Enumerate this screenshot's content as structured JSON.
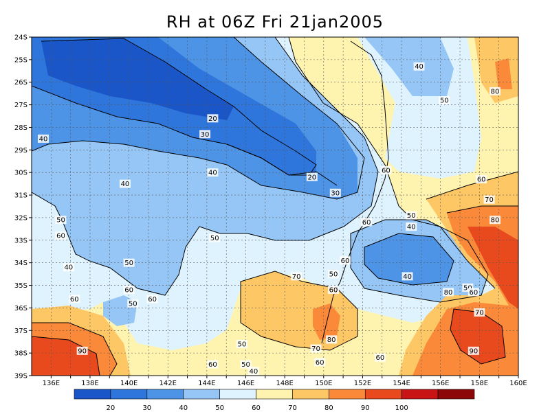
{
  "title": "RH at 06Z Fri 21jan2005",
  "lat_labels": [
    "24S",
    "25S",
    "26S",
    "27S",
    "28S",
    "29S",
    "30S",
    "31S",
    "32S",
    "33S",
    "34S",
    "35S",
    "36S",
    "37S",
    "38S",
    "39S"
  ],
  "lon_labels": [
    "136E",
    "138E",
    "140E",
    "142E",
    "144E",
    "146E",
    "148E",
    "150E",
    "152E",
    "154E",
    "156E",
    "158E",
    "160E"
  ],
  "colorbar": {
    "colors": [
      "#1a56c8",
      "#2e75dc",
      "#4e94e6",
      "#96c6f5",
      "#dff3ff",
      "#fff3b0",
      "#fec766",
      "#fa8a3a",
      "#e84a1e",
      "#c81414",
      "#8c0808"
    ],
    "labels": [
      "20",
      "30",
      "40",
      "50",
      "60",
      "70",
      "80",
      "90",
      "100"
    ]
  },
  "contour_labels": [
    {
      "text": "20",
      "lat": 27.6,
      "lon": 144.3
    },
    {
      "text": "30",
      "lat": 28.3,
      "lon": 143.9
    },
    {
      "text": "40",
      "lat": 28.5,
      "lon": 135.6
    },
    {
      "text": "40",
      "lat": 30.5,
      "lon": 139.8
    },
    {
      "text": "40",
      "lat": 30.0,
      "lon": 144.3
    },
    {
      "text": "20",
      "lat": 30.2,
      "lon": 149.4
    },
    {
      "text": "30",
      "lat": 30.9,
      "lon": 150.6
    },
    {
      "text": "40",
      "lat": 25.3,
      "lon": 154.9
    },
    {
      "text": "50",
      "lat": 26.8,
      "lon": 156.2
    },
    {
      "text": "80",
      "lat": 26.4,
      "lon": 158.8
    },
    {
      "text": "60",
      "lat": 29.9,
      "lon": 153.2
    },
    {
      "text": "60",
      "lat": 30.3,
      "lon": 158.1
    },
    {
      "text": "70",
      "lat": 31.2,
      "lon": 158.5
    },
    {
      "text": "80",
      "lat": 32.1,
      "lon": 158.8
    },
    {
      "text": "50",
      "lat": 32.1,
      "lon": 136.5
    },
    {
      "text": "60",
      "lat": 32.8,
      "lon": 136.5
    },
    {
      "text": "40",
      "lat": 34.2,
      "lon": 136.9
    },
    {
      "text": "50",
      "lat": 32.9,
      "lon": 144.4
    },
    {
      "text": "50",
      "lat": 34.0,
      "lon": 140.0
    },
    {
      "text": "60",
      "lat": 32.2,
      "lon": 152.2
    },
    {
      "text": "50",
      "lat": 31.9,
      "lon": 154.5
    },
    {
      "text": "40",
      "lat": 32.4,
      "lon": 154.5
    },
    {
      "text": "60",
      "lat": 33.9,
      "lon": 151.1
    },
    {
      "text": "40",
      "lat": 34.6,
      "lon": 154.3
    },
    {
      "text": "70",
      "lat": 34.6,
      "lon": 148.6
    },
    {
      "text": "50",
      "lat": 34.5,
      "lon": 150.5
    },
    {
      "text": "60",
      "lat": 35.2,
      "lon": 150.5
    },
    {
      "text": "60",
      "lat": 35.2,
      "lon": 140.0
    },
    {
      "text": "60",
      "lat": 35.6,
      "lon": 137.2
    },
    {
      "text": "60",
      "lat": 35.6,
      "lon": 141.2
    },
    {
      "text": "50",
      "lat": 35.8,
      "lon": 140.2
    },
    {
      "text": "50",
      "lat": 35.1,
      "lon": 157.4
    },
    {
      "text": "60",
      "lat": 35.3,
      "lon": 157.7
    },
    {
      "text": "80",
      "lat": 35.3,
      "lon": 156.4
    },
    {
      "text": "70",
      "lat": 36.2,
      "lon": 158.0
    },
    {
      "text": "80",
      "lat": 37.4,
      "lon": 150.4
    },
    {
      "text": "70",
      "lat": 37.8,
      "lon": 149.6
    },
    {
      "text": "90",
      "lat": 37.9,
      "lon": 137.6
    },
    {
      "text": "50",
      "lat": 37.6,
      "lon": 145.8
    },
    {
      "text": "60",
      "lat": 38.2,
      "lon": 152.9
    },
    {
      "text": "90",
      "lat": 37.9,
      "lon": 157.7
    },
    {
      "text": "60",
      "lat": 38.4,
      "lon": 149.8
    },
    {
      "text": "60",
      "lat": 38.5,
      "lon": 144.3
    },
    {
      "text": "50",
      "lat": 38.5,
      "lon": 146.0
    },
    {
      "text": "40",
      "lat": 38.8,
      "lon": 146.4
    }
  ]
}
